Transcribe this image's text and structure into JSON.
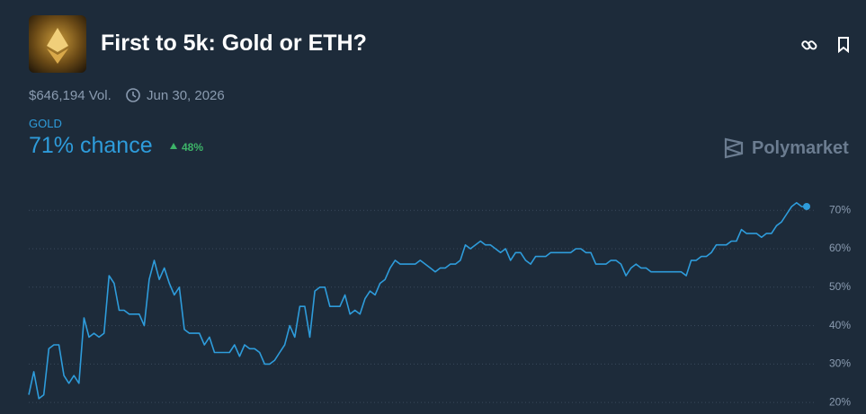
{
  "header": {
    "title": "First to 5k: Gold or ETH?",
    "volume": "$646,194 Vol.",
    "end_date": "Jun 30, 2026",
    "outcome": "GOLD",
    "chance": "71% chance",
    "change": "48%",
    "brand": "Polymarket"
  },
  "chart_data": {
    "type": "line",
    "series": [
      {
        "name": "GOLD",
        "color": "#2e9cdb",
        "values": [
          22,
          28,
          21,
          22,
          34,
          35,
          35,
          27,
          25,
          27,
          25,
          42,
          37,
          38,
          37,
          38,
          53,
          51,
          44,
          44,
          43,
          43,
          43,
          40,
          52,
          57,
          52,
          55,
          51,
          48,
          50,
          39,
          38,
          38,
          38,
          35,
          37,
          33,
          33,
          33,
          33,
          35,
          32,
          35,
          34,
          34,
          33,
          30,
          30,
          31,
          33,
          35,
          40,
          37,
          45,
          45,
          37,
          49,
          50,
          50,
          45,
          45,
          45,
          48,
          43,
          44,
          43,
          47,
          49,
          48,
          51,
          52,
          55,
          57,
          56,
          56,
          56,
          56,
          57,
          56,
          55,
          54,
          55,
          55,
          56,
          56,
          57,
          61,
          60,
          61,
          62,
          61,
          61,
          60,
          59,
          60,
          57,
          59,
          59,
          57,
          56,
          58,
          58,
          58,
          59,
          59,
          59,
          59,
          59,
          60,
          60,
          59,
          59,
          56,
          56,
          56,
          57,
          57,
          56,
          53,
          55,
          56,
          55,
          55,
          54,
          54,
          54,
          54,
          54,
          54,
          54,
          53,
          57,
          57,
          58,
          58,
          59,
          61,
          61,
          61,
          62,
          62,
          65,
          64,
          64,
          64,
          63,
          64,
          64,
          66,
          67,
          69,
          71,
          72,
          71,
          71
        ]
      }
    ],
    "ylim": [
      17,
      78
    ],
    "yticks": [
      {
        "value": 20,
        "label": "20%"
      },
      {
        "value": 30,
        "label": "30%"
      },
      {
        "value": 40,
        "label": "40%"
      },
      {
        "value": 50,
        "label": "50%"
      },
      {
        "value": 60,
        "label": "60%"
      },
      {
        "value": 70,
        "label": "70%"
      }
    ],
    "grid": true
  }
}
